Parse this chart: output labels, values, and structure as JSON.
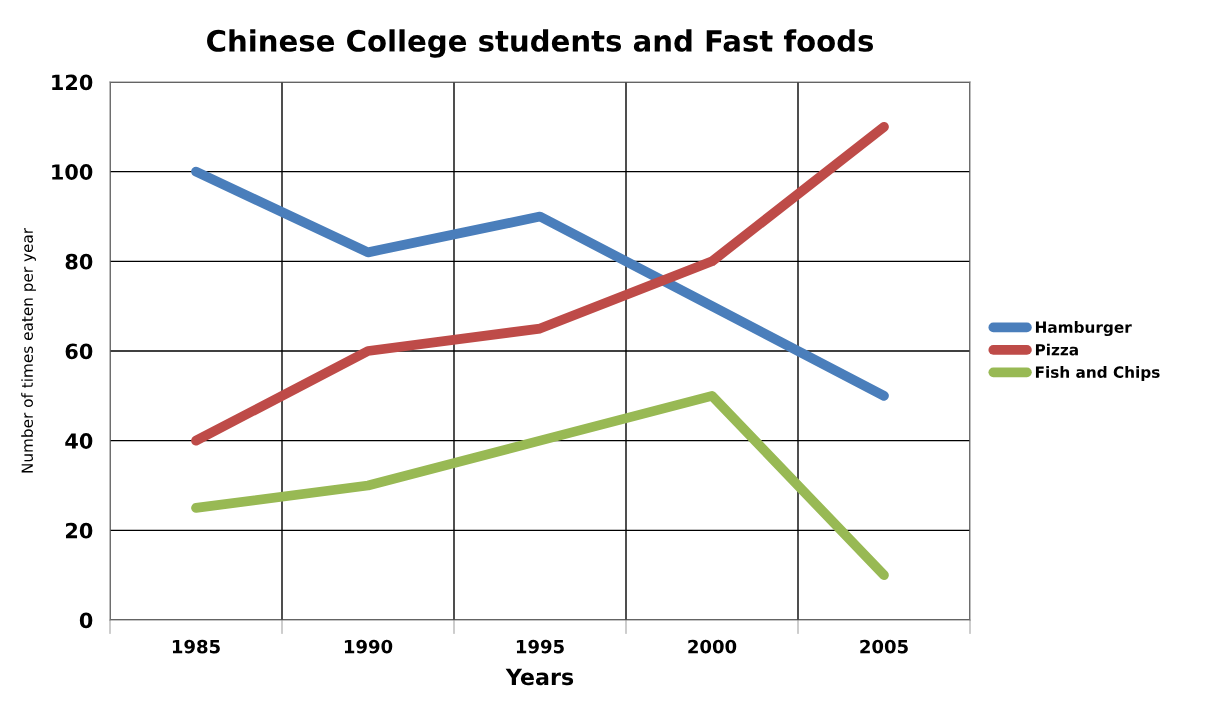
{
  "chart_data": {
    "type": "line",
    "title": "Chinese College students and Fast foods",
    "xlabel": "Years",
    "ylabel": "Number of times eaten per year",
    "categories": [
      "1985",
      "1990",
      "1995",
      "2000",
      "2005"
    ],
    "series": [
      {
        "name": "Hamburger",
        "color": "#4a7ebb",
        "values": [
          100,
          82,
          90,
          70,
          50
        ]
      },
      {
        "name": "Pizza",
        "color": "#be4b48",
        "values": [
          40,
          60,
          65,
          80,
          110
        ]
      },
      {
        "name": "Fish and Chips",
        "color": "#98b954",
        "values": [
          25,
          30,
          40,
          50,
          10
        ]
      }
    ],
    "ylim": [
      0,
      120
    ],
    "yticks": [
      0,
      20,
      40,
      60,
      80,
      100,
      120
    ],
    "grid": true,
    "legend": "right",
    "marker": "none",
    "line_style": "solid"
  }
}
